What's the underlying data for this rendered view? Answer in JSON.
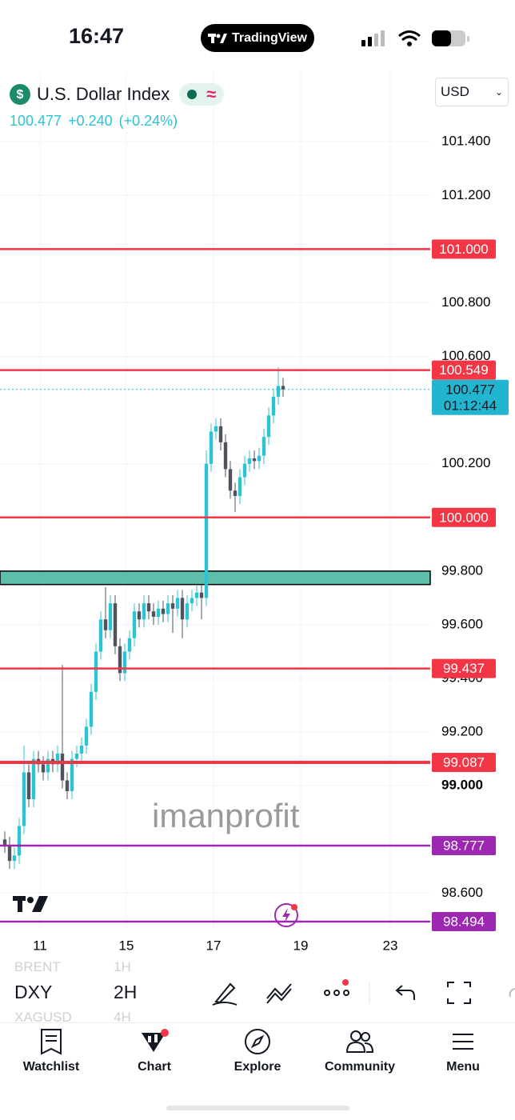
{
  "status_bar": {
    "time": "16:47",
    "app": "TradingView"
  },
  "header": {
    "symbol_name": "U.S. Dollar Index",
    "price": "100.477",
    "change": "+0.240",
    "change_pct": "(+0.24%)",
    "currency": "USD"
  },
  "watermark": "imanprofit",
  "toolbar": {
    "symbol": "DXY",
    "interval": "2H",
    "prev_symbol": "BRENT",
    "next_symbol": "XAGUSD",
    "prev_interval": "1H",
    "next_interval": "4H"
  },
  "nav": [
    "Watchlist",
    "Chart",
    "Explore",
    "Community",
    "Menu"
  ],
  "chart_data": {
    "type": "candlestick",
    "ylim": [
      98.47,
      101.66
    ],
    "yticks": [
      {
        "value": 101.4,
        "label": "101.400"
      },
      {
        "value": 101.2,
        "label": "101.200"
      },
      {
        "value": 100.8,
        "label": "100.800"
      },
      {
        "value": 100.6,
        "label": "100.600"
      },
      {
        "value": 100.2,
        "label": "100.200"
      },
      {
        "value": 99.8,
        "label": "99.800"
      },
      {
        "value": 99.6,
        "label": "99.600"
      },
      {
        "value": 99.4,
        "label": "99.400"
      },
      {
        "value": 99.2,
        "label": "99.200"
      },
      {
        "value": 99,
        "label": "99.000"
      },
      {
        "value": 98.6,
        "label": "98.600"
      }
    ],
    "x_labels": [
      "11",
      "15",
      "17",
      "19",
      "23"
    ],
    "grid": true,
    "up_color": "#2cc3d5",
    "down_color": "#50535e",
    "levels": [
      {
        "value": 101,
        "label": "101.000",
        "color": "#f23645"
      },
      {
        "value": 100.549,
        "label": "100.549",
        "color": "#f23645"
      },
      {
        "value": 100,
        "label": "100.000",
        "color": "#f23645"
      },
      {
        "value": 99.437,
        "label": "99.437",
        "color": "#f23645"
      },
      {
        "value": 99.087,
        "label": "99.087",
        "color": "#f23645"
      },
      {
        "value": 98.777,
        "label": "98.777",
        "color": "#9c27b0"
      },
      {
        "value": 98.494,
        "label": "98.494",
        "color": "#9c27b0"
      }
    ],
    "zone": {
      "low": 99.75,
      "high": 99.8,
      "color": "#5dbfa9"
    },
    "last_price": {
      "value": 100.477,
      "label": "100.477",
      "countdown": "01:12:44",
      "color": "#22b5d0"
    },
    "candles": [
      [
        98.8,
        98.83,
        98.75,
        98.78
      ],
      [
        98.78,
        98.81,
        98.69,
        98.72
      ],
      [
        98.72,
        98.77,
        98.69,
        98.74
      ],
      [
        98.74,
        98.88,
        98.71,
        98.85
      ],
      [
        98.85,
        99.15,
        98.82,
        99.05
      ],
      [
        99.05,
        99.08,
        98.92,
        98.95
      ],
      [
        98.95,
        99.13,
        98.92,
        99.1
      ],
      [
        99.1,
        99.13,
        99.05,
        99.08
      ],
      [
        99.08,
        99.11,
        99.02,
        99.05
      ],
      [
        99.05,
        99.13,
        99.02,
        99.1
      ],
      [
        99.1,
        99.13,
        99.05,
        99.08
      ],
      [
        99.08,
        99.15,
        99.05,
        99.12
      ],
      [
        99.12,
        99.45,
        98.99,
        99.02
      ],
      [
        99.02,
        99.05,
        98.95,
        98.98
      ],
      [
        98.98,
        99.13,
        98.95,
        99.1
      ],
      [
        99.1,
        99.15,
        99.07,
        99.12
      ],
      [
        99.12,
        99.18,
        99.09,
        99.15
      ],
      [
        99.15,
        99.25,
        99.12,
        99.22
      ],
      [
        99.22,
        99.38,
        99.19,
        99.35
      ],
      [
        99.35,
        99.53,
        99.32,
        99.5
      ],
      [
        99.5,
        99.65,
        99.47,
        99.62
      ],
      [
        99.62,
        99.74,
        99.55,
        99.58
      ],
      [
        99.58,
        99.71,
        99.55,
        99.68
      ],
      [
        99.68,
        99.71,
        99.49,
        99.52
      ],
      [
        99.52,
        99.55,
        99.39,
        99.42
      ],
      [
        99.42,
        99.53,
        99.39,
        99.5
      ],
      [
        99.5,
        99.58,
        99.47,
        99.55
      ],
      [
        99.55,
        99.68,
        99.52,
        99.65
      ],
      [
        99.65,
        99.68,
        99.59,
        99.62
      ],
      [
        99.62,
        99.71,
        99.59,
        99.68
      ],
      [
        99.68,
        99.71,
        99.62,
        99.65
      ],
      [
        99.65,
        99.68,
        99.6,
        99.63
      ],
      [
        99.63,
        99.69,
        99.6,
        99.66
      ],
      [
        99.66,
        99.69,
        99.61,
        99.64
      ],
      [
        99.64,
        99.71,
        99.61,
        99.68
      ],
      [
        99.68,
        99.71,
        99.57,
        99.66
      ],
      [
        99.66,
        99.73,
        99.63,
        99.7
      ],
      [
        99.7,
        99.73,
        99.55,
        99.62
      ],
      [
        99.62,
        99.71,
        99.59,
        99.68
      ],
      [
        99.68,
        99.73,
        99.65,
        99.7
      ],
      [
        99.7,
        99.75,
        99.67,
        99.72
      ],
      [
        99.72,
        99.75,
        99.62,
        99.7
      ],
      [
        99.7,
        100.25,
        99.67,
        100.2
      ],
      [
        100.2,
        100.35,
        100.17,
        100.32
      ],
      [
        100.32,
        100.37,
        100.29,
        100.34
      ],
      [
        100.34,
        100.37,
        100.25,
        100.28
      ],
      [
        100.28,
        100.31,
        100.15,
        100.18
      ],
      [
        100.18,
        100.21,
        100.07,
        100.1
      ],
      [
        100.1,
        100.13,
        100.02,
        100.08
      ],
      [
        100.08,
        100.18,
        100.05,
        100.15
      ],
      [
        100.15,
        100.23,
        100.12,
        100.2
      ],
      [
        100.2,
        100.25,
        100.17,
        100.22
      ],
      [
        100.22,
        100.25,
        100.18,
        100.21
      ],
      [
        100.21,
        100.26,
        100.18,
        100.23
      ],
      [
        100.23,
        100.33,
        100.2,
        100.3
      ],
      [
        100.3,
        100.41,
        100.27,
        100.38
      ],
      [
        100.38,
        100.48,
        100.35,
        100.45
      ],
      [
        100.45,
        100.56,
        100.42,
        100.49
      ],
      [
        100.49,
        100.52,
        100.45,
        100.477
      ]
    ]
  }
}
